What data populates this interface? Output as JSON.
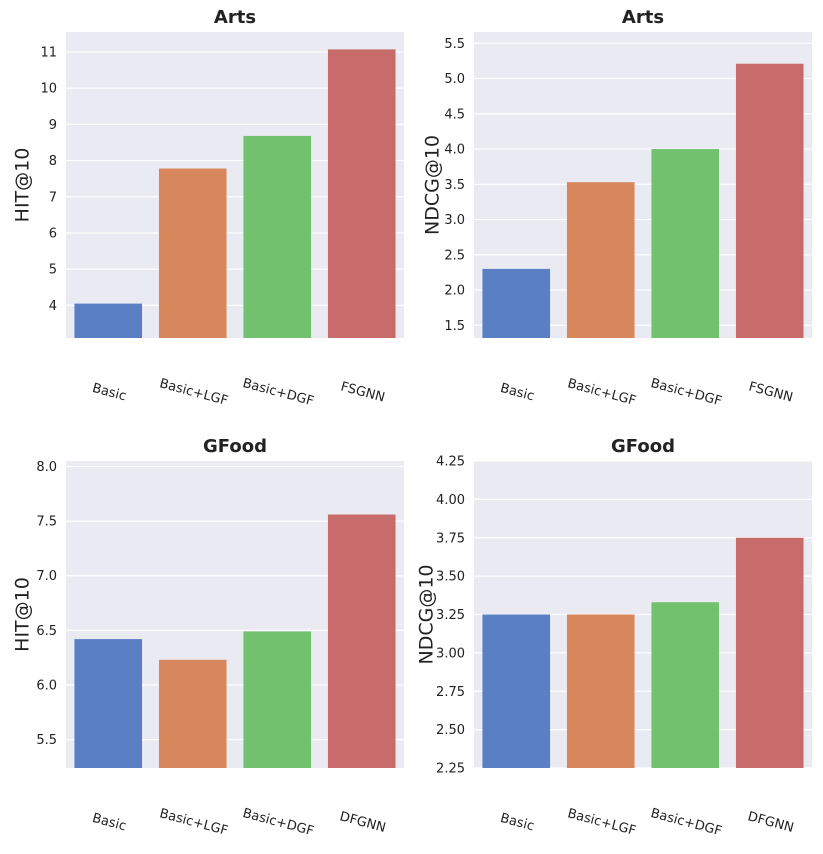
{
  "chart_data": [
    {
      "type": "bar",
      "title": "Arts",
      "ylabel": "HIT@10",
      "xlabel": "",
      "categories": [
        "Basic",
        "Basic+LGF",
        "Basic+DGF",
        "FSGNN"
      ],
      "values": [
        4.05,
        7.78,
        8.68,
        11.07
      ],
      "colors": [
        "#5a7fc4",
        "#d8875c",
        "#72c16e",
        "#c76b6b"
      ],
      "ylim": [
        3.1,
        11.55
      ],
      "yticks": [
        "4",
        "5",
        "6",
        "7",
        "8",
        "9",
        "10",
        "11"
      ],
      "grid": true
    },
    {
      "type": "bar",
      "title": "Arts",
      "ylabel": "NDCG@10",
      "xlabel": "",
      "categories": [
        "Basic",
        "Basic+LGF",
        "Basic+DGF",
        "FSGNN"
      ],
      "values": [
        2.3,
        3.53,
        4.0,
        5.21
      ],
      "colors": [
        "#5a7fc4",
        "#d8875c",
        "#72c16e",
        "#c76b6b"
      ],
      "ylim": [
        1.32,
        5.66
      ],
      "yticks": [
        "1.5",
        "2.0",
        "2.5",
        "3.0",
        "3.5",
        "4.0",
        "4.5",
        "5.0",
        "5.5"
      ],
      "grid": true
    },
    {
      "type": "bar",
      "title": "GFood",
      "ylabel": "HIT@10",
      "xlabel": "",
      "categories": [
        "Basic",
        "Basic+LGF",
        "Basic+DGF",
        "DFGNN"
      ],
      "values": [
        6.42,
        6.23,
        6.49,
        7.56
      ],
      "colors": [
        "#5a7fc4",
        "#d8875c",
        "#72c16e",
        "#c76b6b"
      ],
      "ylim": [
        5.24,
        8.05
      ],
      "yticks": [
        "5.5",
        "6.0",
        "6.5",
        "7.0",
        "7.5",
        "8.0"
      ],
      "grid": true
    },
    {
      "type": "bar",
      "title": "GFood",
      "ylabel": "NDCG@10",
      "xlabel": "",
      "categories": [
        "Basic",
        "Basic+LGF",
        "Basic+DGF",
        "DFGNN"
      ],
      "values": [
        3.25,
        3.25,
        3.33,
        3.75
      ],
      "colors": [
        "#5a7fc4",
        "#d8875c",
        "#72c16e",
        "#c76b6b"
      ],
      "ylim": [
        2.25,
        4.25
      ],
      "yticks": [
        "2.25",
        "2.50",
        "2.75",
        "3.00",
        "3.25",
        "3.50",
        "3.75",
        "4.00",
        "4.25"
      ],
      "grid": true
    }
  ],
  "style": {
    "panel_bg": "#eaeaf2",
    "grid_color": "#ffffff",
    "text_color": "#222222"
  }
}
